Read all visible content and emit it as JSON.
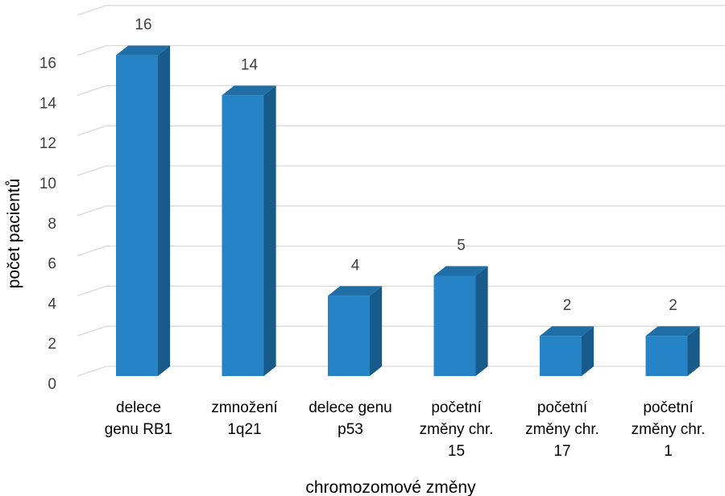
{
  "chart_data": {
    "type": "bar",
    "three_d": true,
    "categories": [
      [
        "delece",
        "genu RB1"
      ],
      [
        "zmnožení",
        "1q21"
      ],
      [
        "delece genu",
        "p53"
      ],
      [
        "početní",
        "změny chr.",
        "15"
      ],
      [
        "početní",
        "změny chr.",
        "17"
      ],
      [
        "početní",
        "změny chr.",
        "1"
      ]
    ],
    "values": [
      16,
      14,
      4,
      5,
      2,
      2
    ],
    "data_labels": [
      "16",
      "14",
      "4",
      "5",
      "2",
      "2"
    ],
    "y_ticks": [
      "0",
      "2",
      "4",
      "6",
      "8",
      "10",
      "12",
      "14",
      "16"
    ],
    "ylim": [
      0,
      18
    ],
    "xlabel": "chromozomové změny",
    "ylabel": "počet pacientů",
    "grid": true,
    "legend": "none",
    "colors": {
      "bar_front": "#2583c6",
      "bar_side": "#185a8a",
      "bar_top": "#1f6ea6",
      "grid": "#d9d9d9",
      "text": "#404040"
    }
  }
}
